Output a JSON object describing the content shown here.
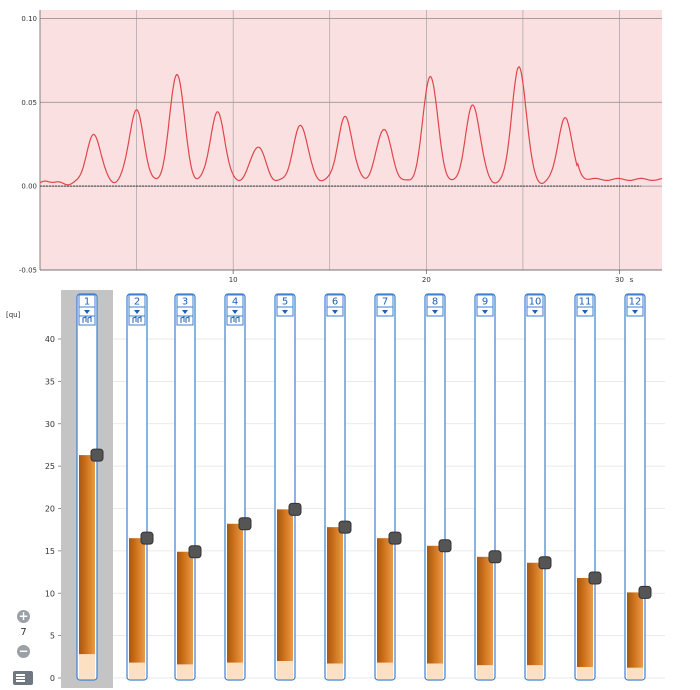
{
  "chromatogram": {
    "y_ticks": [
      "0.10",
      "0.05",
      "0.00",
      "-0.05"
    ],
    "x_ticks": [
      "10",
      "20",
      "30"
    ],
    "x_unit": "s",
    "line_color": "#e0454a",
    "fill_color": "#fbe0e2",
    "baseline": 0.0,
    "peaks": [
      {
        "x": 2.8,
        "h": 0.028,
        "w": 0.38
      },
      {
        "x": 5.0,
        "h": 0.043,
        "w": 0.38
      },
      {
        "x": 7.1,
        "h": 0.065,
        "w": 0.38
      },
      {
        "x": 9.2,
        "h": 0.042,
        "w": 0.38
      },
      {
        "x": 11.3,
        "h": 0.022,
        "w": 0.38
      },
      {
        "x": 13.5,
        "h": 0.035,
        "w": 0.38
      },
      {
        "x": 15.8,
        "h": 0.04,
        "w": 0.38
      },
      {
        "x": 17.8,
        "h": 0.033,
        "w": 0.38
      },
      {
        "x": 20.2,
        "h": 0.064,
        "w": 0.38
      },
      {
        "x": 22.4,
        "h": 0.046,
        "w": 0.38
      },
      {
        "x": 24.8,
        "h": 0.068,
        "w": 0.38
      },
      {
        "x": 27.2,
        "h": 0.038,
        "w": 0.38
      }
    ]
  },
  "tracks": {
    "unit_label": "[qu]",
    "y_ticks": [
      "0",
      "5",
      "10",
      "15",
      "20",
      "25",
      "30",
      "35",
      "40"
    ],
    "bar_color": "#d2761f",
    "outline_color": "#3d7fd0",
    "lanes": [
      {
        "label": "1",
        "value": 26.3,
        "base": 2.8,
        "selected": true,
        "note": true
      },
      {
        "label": "2",
        "value": 16.5,
        "base": 1.8,
        "selected": false,
        "note": true
      },
      {
        "label": "3",
        "value": 14.9,
        "base": 1.6,
        "selected": false,
        "note": true
      },
      {
        "label": "4",
        "value": 18.2,
        "base": 1.8,
        "selected": false,
        "note": true
      },
      {
        "label": "5",
        "value": 19.9,
        "base": 2.0,
        "selected": false,
        "note": false
      },
      {
        "label": "6",
        "value": 17.8,
        "base": 1.7,
        "selected": false,
        "note": false
      },
      {
        "label": "7",
        "value": 16.5,
        "base": 1.8,
        "selected": false,
        "note": false
      },
      {
        "label": "8",
        "value": 15.6,
        "base": 1.7,
        "selected": false,
        "note": false
      },
      {
        "label": "9",
        "value": 14.3,
        "base": 1.5,
        "selected": false,
        "note": false
      },
      {
        "label": "10",
        "value": 13.6,
        "base": 1.5,
        "selected": false,
        "note": false
      },
      {
        "label": "11",
        "value": 11.8,
        "base": 1.3,
        "selected": false,
        "note": false
      },
      {
        "label": "12",
        "value": 10.1,
        "base": 1.2,
        "selected": false,
        "note": false
      }
    ]
  },
  "zoom": {
    "in_label": "+",
    "level": "7",
    "out_label": "−"
  }
}
